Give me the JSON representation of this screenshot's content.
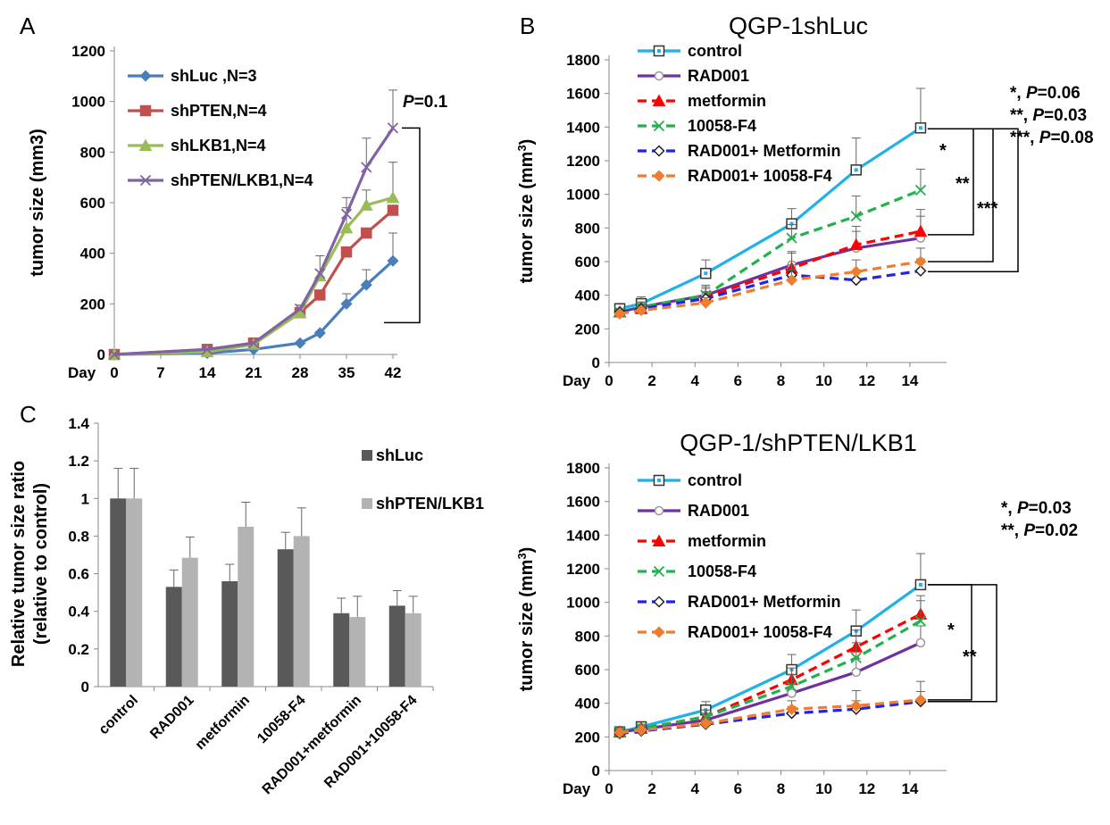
{
  "figure": {
    "panels": [
      {
        "id": "A",
        "label": "A"
      },
      {
        "id": "B_top",
        "label": "B",
        "title": "QGP-1shLuc"
      },
      {
        "id": "C",
        "label": "C"
      },
      {
        "id": "B_bottom",
        "label": "",
        "title": "QGP-1/shPTEN/LKB1"
      }
    ]
  },
  "chart_data": [
    {
      "id": "A",
      "type": "line",
      "title": "",
      "xlabel": "Day",
      "ylabel": "tumor size (mm3)",
      "xticks": [
        0,
        7,
        14,
        21,
        28,
        35,
        42
      ],
      "yticks": [
        0,
        200,
        400,
        600,
        800,
        1000,
        1200
      ],
      "xlim": [
        0,
        42
      ],
      "ylim": [
        0,
        1200
      ],
      "legend_position": "top-left",
      "annotation": {
        "text": "=0.1",
        "italic_prefix": "P",
        "bracket": true
      },
      "series": [
        {
          "name": "shLuc ,N=3",
          "color": "#4a7ebb",
          "marker": "diamond",
          "x": [
            0,
            14,
            21,
            28,
            31,
            35,
            38,
            42
          ],
          "y": [
            0,
            5,
            20,
            45,
            85,
            200,
            275,
            370
          ],
          "err": [
            0,
            0,
            0,
            0,
            0,
            40,
            60,
            110
          ]
        },
        {
          "name": "shPTEN,N=4",
          "color": "#c0504d",
          "marker": "square",
          "x": [
            0,
            14,
            21,
            28,
            31,
            35,
            38,
            42
          ],
          "y": [
            0,
            20,
            45,
            165,
            235,
            405,
            480,
            570
          ],
          "err": [
            0,
            0,
            0,
            0,
            0,
            0,
            0,
            0
          ]
        },
        {
          "name": "shLKB1,N=4",
          "color": "#9bbb59",
          "marker": "triangle",
          "x": [
            0,
            14,
            21,
            28,
            31,
            35,
            38,
            42
          ],
          "y": [
            0,
            10,
            40,
            165,
            310,
            500,
            590,
            620
          ],
          "err": [
            0,
            0,
            0,
            30,
            80,
            80,
            60,
            140
          ]
        },
        {
          "name": "shPTEN/LKB1,N=4",
          "color": "#8064a2",
          "marker": "x",
          "x": [
            0,
            14,
            21,
            28,
            31,
            35,
            38,
            42
          ],
          "y": [
            0,
            20,
            45,
            180,
            320,
            555,
            740,
            895
          ],
          "err": [
            0,
            0,
            0,
            0,
            0,
            65,
            115,
            150
          ]
        }
      ]
    },
    {
      "id": "B_top",
      "type": "line",
      "title": "QGP-1shLuc",
      "xlabel": "Day",
      "ylabel": "tumor size (mm",
      "ylabel_sup": "3",
      "ylabel_close": ")",
      "xticks": [
        0,
        2,
        4,
        6,
        8,
        10,
        12,
        14
      ],
      "yticks": [
        0,
        200,
        400,
        600,
        800,
        1000,
        1200,
        1400,
        1600,
        1800
      ],
      "xlim": [
        0,
        15.5
      ],
      "ylim": [
        0,
        1800
      ],
      "legend_position": "top-left",
      "pvalues": [
        {
          "stars": "*",
          "text": "=0.06"
        },
        {
          "stars": "**",
          "text": "=0.03"
        },
        {
          "stars": "***",
          "text": "=0.08"
        }
      ],
      "brackets": [
        {
          "stars": "*",
          "from": 1390,
          "to": 760
        },
        {
          "stars": "**",
          "from": 1390,
          "to": 600
        },
        {
          "stars": "***",
          "from": 1390,
          "to": 540
        }
      ],
      "series": [
        {
          "name": "control",
          "color": "#1fb1e8",
          "dash": "solid",
          "marker": "square-open",
          "x": [
            0.5,
            1.5,
            4.5,
            8.5,
            11.5,
            14.5
          ],
          "y": [
            320,
            350,
            530,
            825,
            1145,
            1395
          ],
          "err": [
            0,
            40,
            80,
            90,
            190,
            235
          ]
        },
        {
          "name": "RAD001",
          "color": "#7030a0",
          "dash": "solid",
          "marker": "circle-open",
          "x": [
            0.5,
            1.5,
            4.5,
            8.5,
            11.5,
            14.5
          ],
          "y": [
            300,
            330,
            400,
            580,
            680,
            740
          ],
          "err": [
            0,
            30,
            60,
            70,
            100,
            130
          ]
        },
        {
          "name": "metformin",
          "color": "#ff0000",
          "dash": "dashed",
          "marker": "triangle",
          "x": [
            0.5,
            1.5,
            4.5,
            8.5,
            11.5,
            14.5
          ],
          "y": [
            300,
            320,
            390,
            560,
            700,
            780
          ],
          "err": [
            0,
            30,
            50,
            100,
            110,
            130
          ]
        },
        {
          "name": "10058-F4",
          "color": "#23b14d",
          "dash": "dashed",
          "marker": "x",
          "x": [
            0.5,
            1.5,
            4.5,
            8.5,
            11.5,
            14.5
          ],
          "y": [
            300,
            330,
            400,
            740,
            870,
            1025
          ],
          "err": [
            0,
            30,
            50,
            80,
            120,
            125
          ]
        },
        {
          "name": "RAD001+ Metformin",
          "color": "#2222ee",
          "dash": "dashed",
          "marker": "diamond-open",
          "x": [
            0.5,
            1.5,
            4.5,
            8.5,
            11.5,
            14.5
          ],
          "y": [
            300,
            320,
            380,
            520,
            490,
            545
          ],
          "err": [
            0,
            20,
            40,
            60,
            50,
            70
          ]
        },
        {
          "name": "RAD001+ 10058-F4",
          "color": "#ed7d31",
          "dash": "dashed",
          "marker": "diamond",
          "x": [
            0.5,
            1.5,
            4.5,
            8.5,
            11.5,
            14.5
          ],
          "y": [
            290,
            310,
            355,
            490,
            540,
            600
          ],
          "err": [
            0,
            20,
            30,
            60,
            70,
            80
          ]
        }
      ]
    },
    {
      "id": "C",
      "type": "bar",
      "title": "",
      "ylabel_line1": "Relative tumor size ratio",
      "ylabel_line2": "(relative to control)",
      "categories": [
        "control",
        "RAD001",
        "metformin",
        "10058-F4",
        "RAD001+metformin",
        "RAD001+10058-F4"
      ],
      "yticks": [
        "0",
        "0.2",
        "0.4",
        "0.6",
        "0.8",
        "1",
        "1.2",
        "1.4"
      ],
      "ylim": [
        0,
        1.4
      ],
      "legend_position": "right",
      "series": [
        {
          "name": "shLuc",
          "color": "#595959",
          "values": [
            1.0,
            0.53,
            0.56,
            0.73,
            0.39,
            0.43
          ],
          "err": [
            0.16,
            0.09,
            0.09,
            0.09,
            0.08,
            0.08
          ]
        },
        {
          "name": "shPTEN/LKB1",
          "color": "#b3b3b3",
          "values": [
            1.0,
            0.685,
            0.85,
            0.8,
            0.37,
            0.39
          ],
          "err": [
            0.16,
            0.11,
            0.13,
            0.15,
            0.11,
            0.09
          ]
        }
      ]
    },
    {
      "id": "B_bottom",
      "type": "line",
      "title": "QGP-1/shPTEN/LKB1",
      "xlabel": "Day",
      "ylabel": "tumor size (mm",
      "ylabel_sup": "3",
      "ylabel_close": ")",
      "xticks": [
        0,
        2,
        4,
        6,
        8,
        10,
        12,
        14
      ],
      "yticks": [
        0,
        200,
        400,
        600,
        800,
        1000,
        1200,
        1400,
        1600,
        1800
      ],
      "xlim": [
        0,
        15.5
      ],
      "ylim": [
        0,
        1800
      ],
      "legend_position": "top-left",
      "pvalues": [
        {
          "stars": "*",
          "text": "=0.03"
        },
        {
          "stars": "**",
          "text": "=0.02"
        }
      ],
      "brackets": [
        {
          "stars": "*",
          "from": 1105,
          "to": 420
        },
        {
          "stars": "**",
          "from": 1105,
          "to": 410
        }
      ],
      "series": [
        {
          "name": "control",
          "color": "#1fb1e8",
          "dash": "solid",
          "marker": "square-open",
          "x": [
            0.5,
            1.5,
            4.5,
            8.5,
            11.5,
            14.5
          ],
          "y": [
            230,
            260,
            360,
            600,
            830,
            1105
          ],
          "err": [
            30,
            30,
            50,
            90,
            125,
            185
          ]
        },
        {
          "name": "RAD001",
          "color": "#7030a0",
          "dash": "solid",
          "marker": "circle-open",
          "x": [
            0.5,
            1.5,
            4.5,
            8.5,
            11.5,
            14.5
          ],
          "y": [
            230,
            245,
            300,
            460,
            585,
            760
          ],
          "err": [
            20,
            20,
            40,
            60,
            80,
            100
          ]
        },
        {
          "name": "metformin",
          "color": "#ff0000",
          "dash": "dashed",
          "marker": "triangle",
          "x": [
            0.5,
            1.5,
            4.5,
            8.5,
            11.5,
            14.5
          ],
          "y": [
            230,
            250,
            320,
            540,
            735,
            930
          ],
          "err": [
            20,
            25,
            40,
            70,
            100,
            110
          ]
        },
        {
          "name": "10058-F4",
          "color": "#23b14d",
          "dash": "dashed",
          "marker": "x",
          "x": [
            0.5,
            1.5,
            4.5,
            8.5,
            11.5,
            14.5
          ],
          "y": [
            230,
            250,
            320,
            500,
            670,
            890
          ],
          "err": [
            20,
            25,
            40,
            70,
            90,
            120
          ]
        },
        {
          "name": "RAD001+ Metformin",
          "color": "#2222ee",
          "dash": "dashed",
          "marker": "diamond-open",
          "x": [
            0.5,
            1.5,
            4.5,
            8.5,
            11.5,
            14.5
          ],
          "y": [
            220,
            235,
            275,
            340,
            365,
            410
          ],
          "err": [
            20,
            20,
            30,
            40,
            50,
            60
          ]
        },
        {
          "name": "RAD001+ 10058-F4",
          "color": "#ed7d31",
          "dash": "dashed",
          "marker": "diamond",
          "x": [
            0.5,
            1.5,
            4.5,
            8.5,
            11.5,
            14.5
          ],
          "y": [
            225,
            240,
            280,
            365,
            385,
            420
          ],
          "err": [
            20,
            20,
            30,
            50,
            90,
            110
          ]
        }
      ]
    }
  ]
}
